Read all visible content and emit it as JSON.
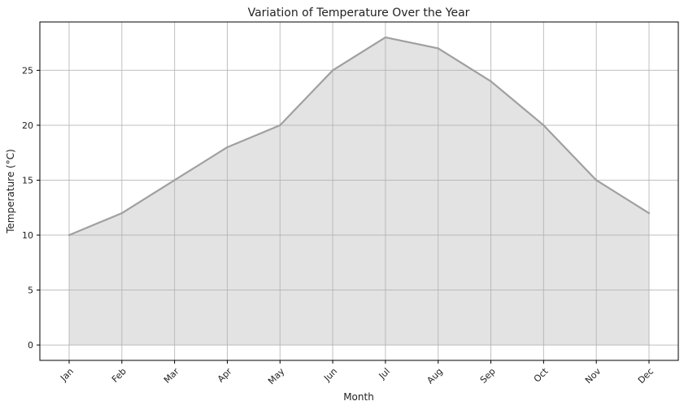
{
  "chart_data": {
    "type": "area",
    "title": "Variation of Temperature Over the Year",
    "xlabel": "Month",
    "ylabel": "Temperature (°C)",
    "categories": [
      "Jan",
      "Feb",
      "Mar",
      "Apr",
      "May",
      "Jun",
      "Jul",
      "Aug",
      "Sep",
      "Oct",
      "Nov",
      "Dec"
    ],
    "values": [
      10,
      12,
      15,
      18,
      20,
      25,
      28,
      27,
      24,
      20,
      15,
      12
    ],
    "yticks": [
      0,
      5,
      10,
      15,
      20,
      25
    ],
    "ylim": [
      -1.4,
      29.4
    ],
    "grid": true,
    "legend": "none",
    "colors": {
      "line": "#a0a0a0",
      "fill": "#e3e3e3",
      "grid": "#b0b0b0",
      "axes": "#000000"
    }
  }
}
